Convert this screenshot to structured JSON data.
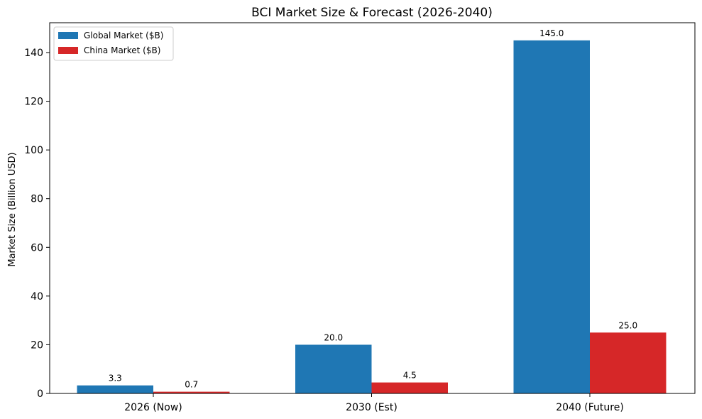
{
  "chart_data": {
    "type": "bar",
    "title": "BCI Market Size & Forecast (2026-2040)",
    "xlabel": "",
    "ylabel": "Market Size (Billion USD)",
    "categories": [
      "2026 (Now)",
      "2030 (Est)",
      "2040 (Future)"
    ],
    "series": [
      {
        "name": "Global Market ($B)",
        "color": "#1f77b4",
        "values": [
          3.3,
          20.0,
          145.0
        ],
        "labels": [
          "3.3",
          "20.0",
          "145.0"
        ]
      },
      {
        "name": "China Market ($B)",
        "color": "#d62728",
        "values": [
          0.7,
          4.5,
          25.0
        ],
        "labels": [
          "0.7",
          "4.5",
          "25.0"
        ]
      }
    ],
    "ylim": [
      0,
      152.25
    ],
    "yticks": [
      0,
      20,
      40,
      60,
      80,
      100,
      120,
      140
    ],
    "ytick_labels": [
      "0",
      "20",
      "40",
      "60",
      "80",
      "100",
      "120",
      "140"
    ],
    "grid": false,
    "legend_position": "top-left"
  }
}
